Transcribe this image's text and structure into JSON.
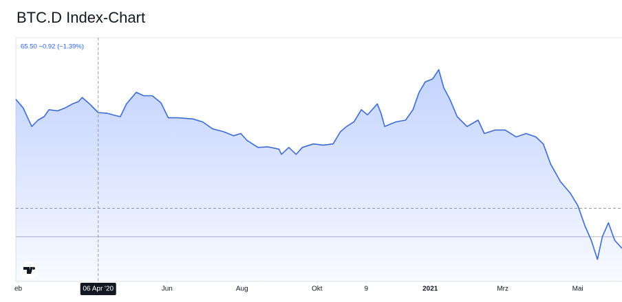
{
  "chart_data": {
    "type": "line",
    "title": "BTC.D Index-Chart",
    "legend_text": "65.50 −0.92 (−1.39%)",
    "color": "#3a6ad4",
    "x": [
      -2,
      4,
      11,
      16,
      21,
      25,
      32,
      38,
      44,
      49,
      52,
      58,
      65,
      72,
      77,
      83,
      88,
      96,
      102,
      109,
      116,
      122,
      130,
      142,
      150,
      158,
      167,
      175,
      181,
      186,
      195,
      203,
      212,
      214,
      220,
      226,
      231,
      240,
      248,
      256,
      262,
      267,
      273,
      279,
      284,
      292,
      295,
      298,
      307,
      315,
      321,
      326,
      331,
      337,
      342,
      346,
      351,
      357,
      365,
      374,
      379,
      388,
      396,
      405,
      413,
      421,
      427,
      433,
      441,
      449,
      455,
      461,
      466,
      471,
      475,
      480,
      485,
      491
    ],
    "values": [
      67.8,
      66.3,
      63.1,
      64.2,
      64.8,
      66.0,
      65.8,
      66.3,
      67.0,
      67.4,
      68.1,
      67.0,
      65.5,
      65.4,
      65.1,
      64.8,
      67.0,
      69.0,
      68.4,
      68.4,
      67.2,
      64.6,
      64.6,
      64.4,
      63.9,
      62.7,
      62.2,
      61.5,
      61.9,
      60.7,
      59.5,
      59.6,
      59.2,
      58.3,
      59.5,
      58.3,
      59.5,
      60.1,
      59.9,
      60.1,
      62.2,
      63.1,
      63.9,
      66.0,
      65.1,
      67.0,
      65.4,
      63.1,
      63.9,
      64.2,
      66.0,
      69.0,
      70.8,
      71.3,
      72.9,
      69.8,
      67.8,
      64.8,
      63.1,
      64.2,
      61.9,
      62.5,
      62.5,
      61.3,
      61.9,
      61.3,
      60.1,
      56.6,
      53.6,
      51.6,
      49.5,
      45.9,
      43.5,
      40.2,
      44.1,
      46.5,
      43.5,
      42.1
    ],
    "xlim": [
      -2,
      491
    ],
    "ylim": [
      36.4,
      78.4
    ],
    "xticks": [
      {
        "value": 0,
        "label": "eb"
      },
      {
        "value": 121,
        "label": "Jun"
      },
      {
        "value": 182,
        "label": "Aug"
      },
      {
        "value": 243,
        "label": "Okt"
      },
      {
        "value": 283,
        "label": "9"
      },
      {
        "value": 335,
        "label": "2021"
      },
      {
        "value": 394,
        "label": "Mrz"
      },
      {
        "value": 455,
        "label": "Mai"
      }
    ],
    "crosshair": {
      "x": 65,
      "y": 49.0,
      "label": "06 Apr '20"
    },
    "price_line": 44.1
  }
}
